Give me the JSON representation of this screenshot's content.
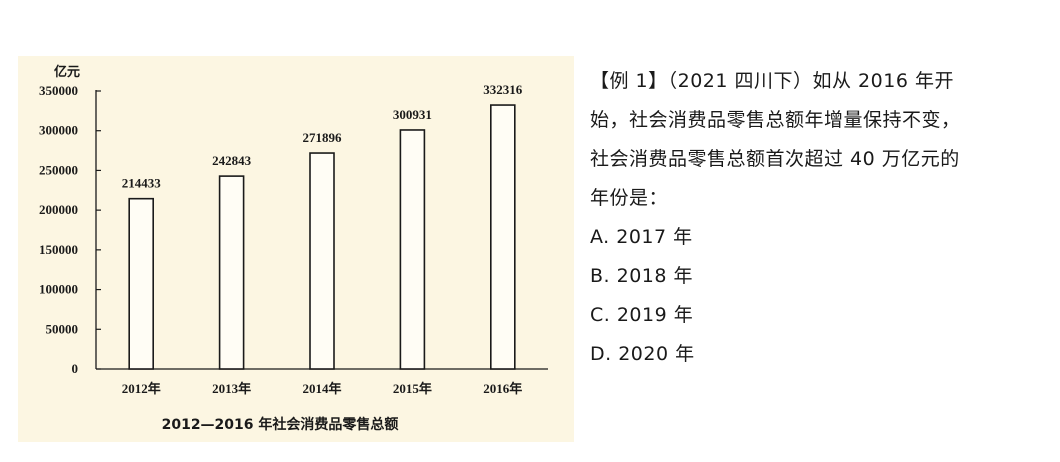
{
  "chart_data": {
    "type": "bar",
    "title": "2012—2016 年社会消费品零售总额",
    "unit_label": "亿元",
    "categories": [
      "2012年",
      "2013年",
      "2014年",
      "2015年",
      "2016年"
    ],
    "values": [
      214433,
      242843,
      271896,
      300931,
      332316
    ],
    "value_labels": [
      "214433",
      "242843",
      "271896",
      "300931",
      "332316"
    ],
    "yticks": [
      "0",
      "50000",
      "100000",
      "150000",
      "200000",
      "250000",
      "300000",
      "350000"
    ],
    "ylim": [
      0,
      350000
    ],
    "grid": false,
    "legend": "none"
  },
  "question": {
    "lines": [
      "【例 1】（2021 四川下）如从 2016 年开",
      "始，社会消费品零售总额年增量保持不变，",
      "社会消费品零售总额首次超过 40 万亿元的",
      "年份是："
    ],
    "options": [
      "A. 2017 年",
      "B. 2018 年",
      "C. 2019 年",
      "D. 2020 年"
    ]
  }
}
